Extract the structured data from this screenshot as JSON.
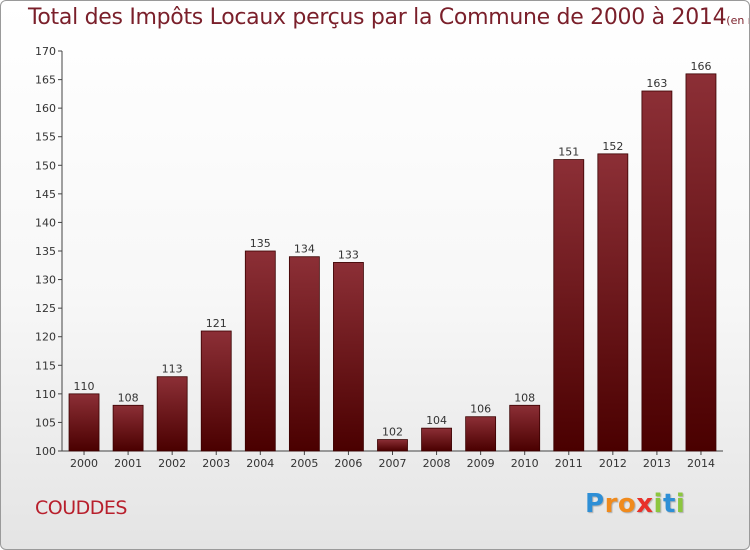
{
  "chart_data": {
    "type": "bar",
    "title": "Total des Impôts Locaux perçus par la Commune de 2000 à 2014",
    "unit": "(en milliers d'€)",
    "categories": [
      "2000",
      "2001",
      "2002",
      "2003",
      "2004",
      "2005",
      "2006",
      "2007",
      "2008",
      "2009",
      "2010",
      "2011",
      "2012",
      "2013",
      "2014"
    ],
    "values": [
      110,
      108,
      113,
      121,
      135,
      134,
      133,
      102,
      104,
      106,
      108,
      151,
      152,
      163,
      166
    ],
    "yticks": [
      100,
      105,
      110,
      115,
      120,
      125,
      130,
      135,
      140,
      145,
      150,
      155,
      160,
      165,
      170
    ],
    "ylim": [
      100,
      170
    ],
    "xlabel": "",
    "ylabel": "",
    "grid": false,
    "bar_color_top": "#8c2f36",
    "bar_color_bottom": "#4a0000"
  },
  "footer": {
    "commune": "COUDDES",
    "logo_letters": [
      {
        "ch": "P",
        "color": "#2e8fd6"
      },
      {
        "ch": "r",
        "color": "#f08a1c"
      },
      {
        "ch": "o",
        "color": "#f08a1c"
      },
      {
        "ch": "x",
        "color": "#e8312a"
      },
      {
        "ch": "i",
        "color": "#8cc63f"
      },
      {
        "ch": "t",
        "color": "#2e8fd6"
      },
      {
        "ch": "i",
        "color": "#8cc63f"
      }
    ]
  }
}
